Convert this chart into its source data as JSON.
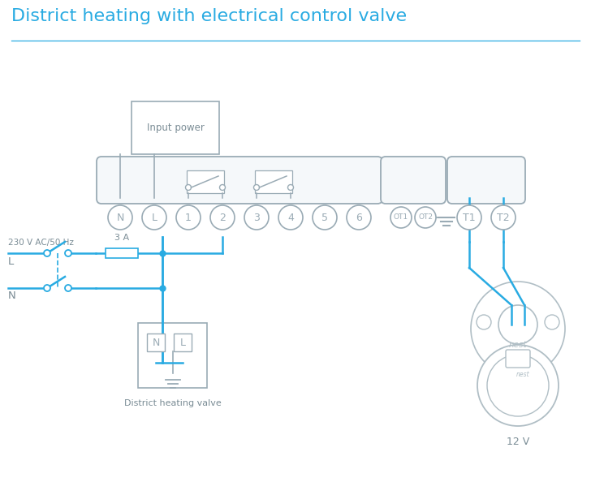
{
  "title": "District heating with electrical control valve",
  "title_color": "#29abe2",
  "title_fontsize": 16,
  "bg_color": "#ffffff",
  "line_color": "#29abe2",
  "term_color": "#9aabb5",
  "text_color": "#7a8c95",
  "nest_color": "#b0bec5",
  "terminal_labels_main": [
    "N",
    "L",
    "1",
    "2",
    "3",
    "4",
    "5",
    "6"
  ],
  "terminal_labels_ot": [
    "OT1",
    "OT2"
  ],
  "terminal_labels_right": [
    "T1",
    "T2"
  ],
  "label_input_power": "Input power",
  "label_district": "District heating valve",
  "label_12v": "12 V",
  "label_L": "L",
  "label_N": "N",
  "label_230v": "230 V AC/50 Hz",
  "label_3A": "3 A",
  "label_nest": "nest"
}
